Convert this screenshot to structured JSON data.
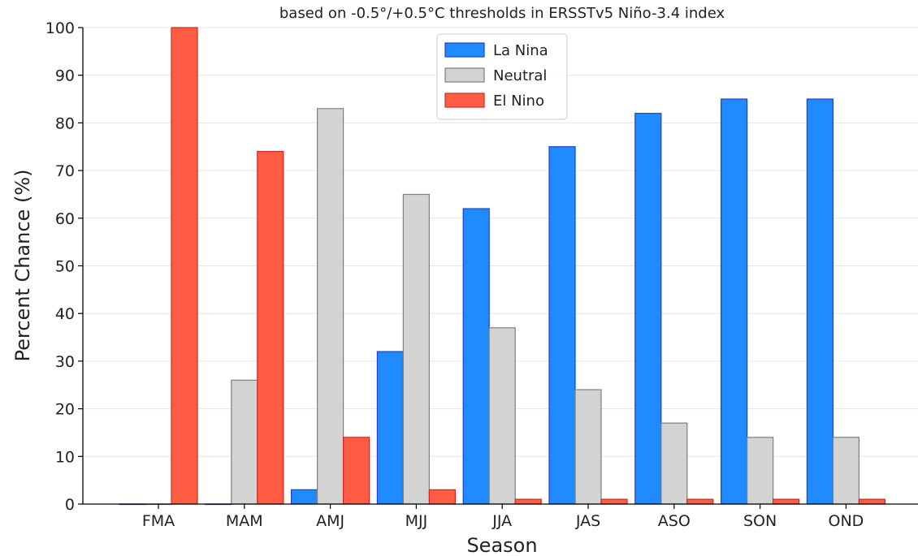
{
  "chart_data": {
    "type": "bar",
    "title": "based on -0.5°/+0.5°C thresholds in ERSSTv5 Niño-3.4 index",
    "xlabel": "Season",
    "ylabel": "Percent Chance (%)",
    "ylim": [
      0,
      100
    ],
    "yticks": [
      0,
      10,
      20,
      30,
      40,
      50,
      60,
      70,
      80,
      90,
      100
    ],
    "categories": [
      "FMA",
      "MAM",
      "AMJ",
      "MJJ",
      "JJA",
      "JAS",
      "ASO",
      "SON",
      "OND"
    ],
    "grid": "horizontal",
    "legend_placement": "top-center",
    "series": [
      {
        "name": "La Nina",
        "color": "#1f8bff",
        "edge": "#1a3fd6",
        "values": [
          0,
          0,
          3,
          32,
          62,
          75,
          82,
          85,
          85
        ]
      },
      {
        "name": "Neutral",
        "color": "#d3d3d3",
        "edge": "#7f7f7f",
        "values": [
          0,
          26,
          83,
          65,
          37,
          24,
          17,
          14,
          14
        ]
      },
      {
        "name": "El Nino",
        "color": "#ff5c45",
        "edge": "#d8271a",
        "values": [
          100,
          74,
          14,
          3,
          1,
          1,
          1,
          1,
          1
        ]
      }
    ]
  }
}
